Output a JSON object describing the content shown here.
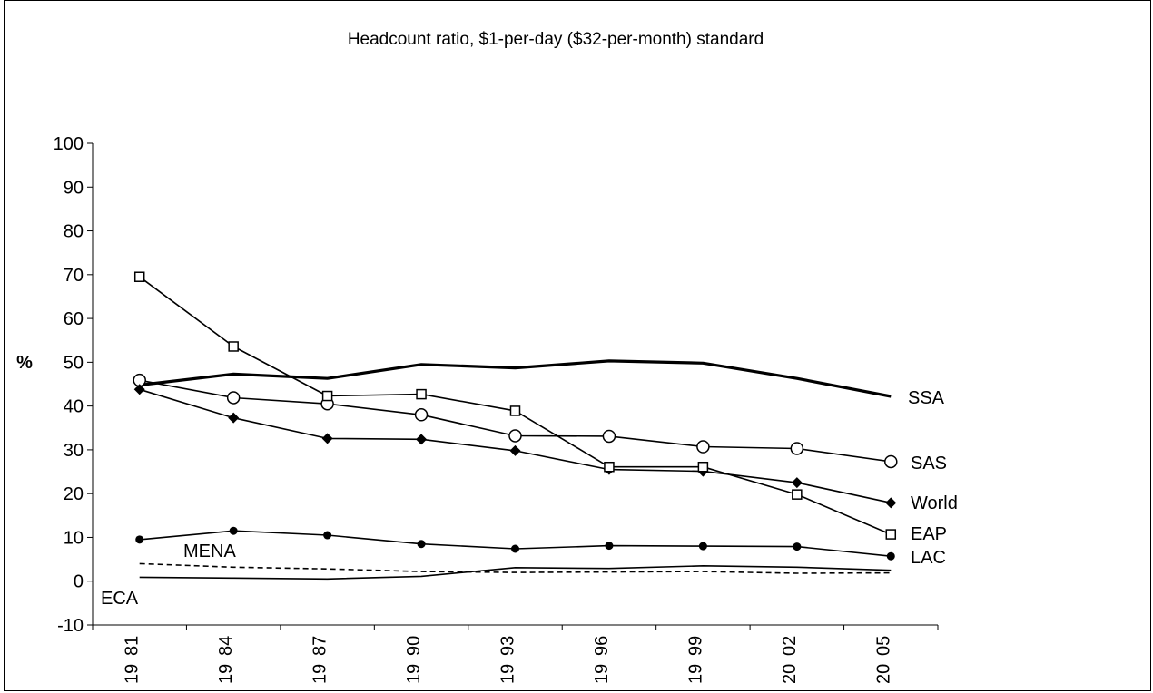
{
  "chart_data": {
    "type": "line",
    "title": "Headcount ratio, $1-per-day ($32-per-month) standard",
    "xlabel": "",
    "ylabel": "%",
    "ylim": [
      -10,
      100
    ],
    "yticks": [
      "-10",
      "0",
      "10",
      "20",
      "30",
      "40",
      "50",
      "60",
      "70",
      "80",
      "90",
      "100"
    ],
    "categories": [
      "1981",
      "1984",
      "1987",
      "1990",
      "1993",
      "1996",
      "1999",
      "2002",
      "2005"
    ],
    "tick_labels": [
      [
        "19",
        "81"
      ],
      [
        "19",
        "84"
      ],
      [
        "19",
        "87"
      ],
      [
        "19",
        "90"
      ],
      [
        "19",
        "93"
      ],
      [
        "19",
        "96"
      ],
      [
        "19",
        "99"
      ],
      [
        "20",
        "02"
      ],
      [
        "20",
        "05"
      ]
    ],
    "grid": false,
    "legend": "inline labels at series ends",
    "series": [
      {
        "name": "SSA",
        "values": [
          44.8,
          47.3,
          46.3,
          49.5,
          48.7,
          50.3,
          49.8,
          46.3,
          42.2
        ],
        "style": "bold",
        "marker": "none"
      },
      {
        "name": "SAS",
        "values": [
          45.9,
          41.9,
          40.5,
          38.0,
          33.2,
          33.1,
          30.7,
          30.3,
          27.3
        ],
        "style": "solid",
        "marker": "circle"
      },
      {
        "name": "World",
        "values": [
          43.8,
          37.3,
          32.6,
          32.4,
          29.8,
          25.5,
          25.1,
          22.5,
          17.9
        ],
        "style": "solid",
        "marker": "diamond"
      },
      {
        "name": "EAP",
        "values": [
          69.5,
          53.6,
          42.3,
          42.7,
          38.9,
          26.1,
          26.1,
          19.8,
          10.7
        ],
        "style": "solid",
        "marker": "square"
      },
      {
        "name": "LAC",
        "values": [
          9.5,
          11.5,
          10.5,
          8.5,
          7.4,
          8.1,
          8.0,
          7.9,
          5.7
        ],
        "style": "solid",
        "marker": "dot"
      },
      {
        "name": "MENA",
        "values": [
          4.0,
          3.2,
          2.8,
          2.2,
          2.0,
          2.1,
          2.2,
          1.8,
          1.9
        ],
        "style": "dashed",
        "marker": "none"
      },
      {
        "name": "ECA",
        "values": [
          0.9,
          0.7,
          0.5,
          1.1,
          3.1,
          2.9,
          3.5,
          3.2,
          2.5
        ],
        "style": "solid",
        "marker": "none"
      }
    ]
  }
}
